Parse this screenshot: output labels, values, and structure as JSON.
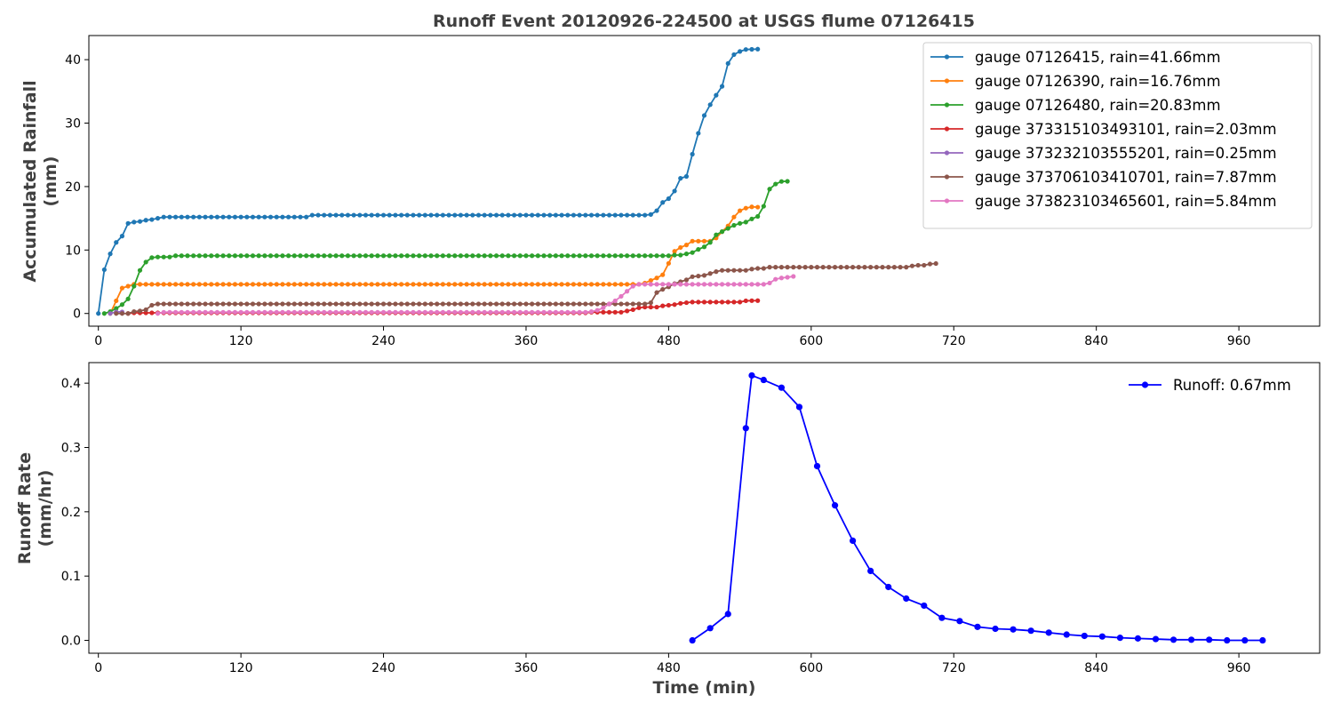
{
  "title": "Runoff Event 20120926-224500 at USGS flume 07126415",
  "chart_data": [
    {
      "type": "line",
      "ylabel": "Accumulated Rainfall\n(mm)",
      "xlabel": "",
      "xlim": [
        -8,
        1028
      ],
      "ylim": [
        -2,
        43.8
      ],
      "xticks": [
        0,
        120,
        240,
        360,
        480,
        600,
        720,
        840,
        960
      ],
      "yticks": [
        0,
        10,
        20,
        30,
        40
      ],
      "legend": "top-right",
      "series": [
        {
          "name": "gauge 07126415, rain=41.66mm",
          "color": "#1f77b4",
          "points": [
            [
              0,
              0
            ],
            [
              5,
              6.9
            ],
            [
              10,
              9.4
            ],
            [
              15,
              11.2
            ],
            [
              20,
              12.2
            ],
            [
              25,
              14.2
            ],
            [
              30,
              14.4
            ],
            [
              35,
              14.5
            ],
            [
              40,
              14.7
            ],
            [
              45,
              14.8
            ],
            [
              50,
              15.0
            ],
            [
              55,
              15.2
            ],
            [
              60,
              15.2
            ],
            [
              175,
              15.2
            ],
            [
              180,
              15.5
            ],
            [
              460,
              15.5
            ],
            [
              465,
              15.6
            ],
            [
              470,
              16.2
            ],
            [
              475,
              17.5
            ],
            [
              480,
              18.1
            ],
            [
              485,
              19.3
            ],
            [
              490,
              21.3
            ],
            [
              495,
              21.6
            ],
            [
              500,
              25.1
            ],
            [
              505,
              28.4
            ],
            [
              510,
              31.2
            ],
            [
              515,
              32.9
            ],
            [
              520,
              34.4
            ],
            [
              525,
              35.8
            ],
            [
              530,
              39.4
            ],
            [
              535,
              40.8
            ],
            [
              540,
              41.3
            ],
            [
              545,
              41.6
            ],
            [
              555,
              41.66
            ]
          ]
        },
        {
          "name": "gauge 07126390, rain=16.76mm",
          "color": "#ff7f0e",
          "points": [
            [
              10,
              0
            ],
            [
              15,
              2.0
            ],
            [
              20,
              4.0
            ],
            [
              25,
              4.3
            ],
            [
              30,
              4.6
            ],
            [
              455,
              4.6
            ],
            [
              460,
              4.8
            ],
            [
              465,
              5.2
            ],
            [
              470,
              5.6
            ],
            [
              475,
              6.1
            ],
            [
              480,
              7.9
            ],
            [
              485,
              9.8
            ],
            [
              490,
              10.4
            ],
            [
              495,
              10.8
            ],
            [
              500,
              11.4
            ],
            [
              515,
              11.4
            ],
            [
              520,
              11.9
            ],
            [
              525,
              12.9
            ],
            [
              530,
              13.8
            ],
            [
              535,
              15.2
            ],
            [
              540,
              16.2
            ],
            [
              545,
              16.6
            ],
            [
              550,
              16.8
            ],
            [
              555,
              16.76
            ]
          ]
        },
        {
          "name": "gauge 07126480, rain=20.83mm",
          "color": "#2ca02c",
          "points": [
            [
              5,
              0
            ],
            [
              10,
              0.3
            ],
            [
              15,
              0.8
            ],
            [
              20,
              1.4
            ],
            [
              25,
              2.3
            ],
            [
              30,
              4.3
            ],
            [
              35,
              6.8
            ],
            [
              40,
              8.1
            ],
            [
              45,
              8.8
            ],
            [
              50,
              8.9
            ],
            [
              60,
              8.9
            ],
            [
              65,
              9.1
            ],
            [
              480,
              9.1
            ],
            [
              485,
              9.2
            ],
            [
              490,
              9.2
            ],
            [
              495,
              9.4
            ],
            [
              500,
              9.6
            ],
            [
              505,
              10.1
            ],
            [
              510,
              10.5
            ],
            [
              515,
              11.2
            ],
            [
              520,
              12.4
            ],
            [
              525,
              12.9
            ],
            [
              530,
              13.4
            ],
            [
              535,
              13.9
            ],
            [
              540,
              14.2
            ],
            [
              545,
              14.4
            ],
            [
              550,
              14.9
            ],
            [
              555,
              15.3
            ],
            [
              560,
              16.9
            ],
            [
              565,
              19.6
            ],
            [
              570,
              20.4
            ],
            [
              575,
              20.8
            ],
            [
              580,
              20.83
            ]
          ]
        },
        {
          "name": "gauge 373315103493101, rain=2.03mm",
          "color": "#d62728",
          "points": [
            [
              25,
              0
            ],
            [
              30,
              0.1
            ],
            [
              410,
              0.1
            ],
            [
              415,
              0.2
            ],
            [
              440,
              0.2
            ],
            [
              445,
              0.4
            ],
            [
              450,
              0.6
            ],
            [
              455,
              0.9
            ],
            [
              460,
              1.0
            ],
            [
              465,
              1.0
            ],
            [
              470,
              1.0
            ],
            [
              475,
              1.2
            ],
            [
              480,
              1.3
            ],
            [
              485,
              1.4
            ],
            [
              490,
              1.6
            ],
            [
              495,
              1.7
            ],
            [
              500,
              1.8
            ],
            [
              540,
              1.8
            ],
            [
              545,
              2.0
            ],
            [
              555,
              2.03
            ]
          ]
        },
        {
          "name": "gauge 373232103555201, rain=0.25mm",
          "color": "#9467bd",
          "points": [
            [
              10,
              0
            ],
            [
              15,
              0.25
            ],
            [
              20,
              0.25
            ]
          ]
        },
        {
          "name": "gauge 373706103410701, rain=7.87mm",
          "color": "#8c564b",
          "points": [
            [
              15,
              0
            ],
            [
              25,
              0
            ],
            [
              30,
              0.3
            ],
            [
              35,
              0.4
            ],
            [
              40,
              0.6
            ],
            [
              45,
              1.3
            ],
            [
              50,
              1.5
            ],
            [
              460,
              1.5
            ],
            [
              465,
              1.7
            ],
            [
              470,
              3.3
            ],
            [
              475,
              3.8
            ],
            [
              480,
              4.2
            ],
            [
              485,
              4.7
            ],
            [
              490,
              5.0
            ],
            [
              495,
              5.3
            ],
            [
              500,
              5.8
            ],
            [
              510,
              6.0
            ],
            [
              515,
              6.3
            ],
            [
              520,
              6.6
            ],
            [
              525,
              6.8
            ],
            [
              545,
              6.8
            ],
            [
              550,
              7.0
            ],
            [
              555,
              7.1
            ],
            [
              560,
              7.1
            ],
            [
              565,
              7.3
            ],
            [
              680,
              7.3
            ],
            [
              685,
              7.5
            ],
            [
              690,
              7.6
            ],
            [
              695,
              7.6
            ],
            [
              700,
              7.8
            ],
            [
              705,
              7.87
            ]
          ]
        },
        {
          "name": "gauge 373823103465601, rain=5.84mm",
          "color": "#e377c2",
          "points": [
            [
              50,
              0
            ],
            [
              55,
              0.2
            ],
            [
              410,
              0.2
            ],
            [
              415,
              0.3
            ],
            [
              420,
              0.5
            ],
            [
              425,
              0.9
            ],
            [
              430,
              1.5
            ],
            [
              435,
              2.0
            ],
            [
              440,
              2.7
            ],
            [
              445,
              3.5
            ],
            [
              450,
              4.3
            ],
            [
              455,
              4.6
            ],
            [
              560,
              4.6
            ],
            [
              565,
              4.8
            ],
            [
              570,
              5.4
            ],
            [
              575,
              5.6
            ],
            [
              580,
              5.7
            ],
            [
              585,
              5.84
            ]
          ]
        }
      ]
    },
    {
      "type": "line",
      "ylabel": "Runoff Rate\n(mm/hr)",
      "xlabel": "Time (min)",
      "xlim": [
        -8,
        1028
      ],
      "ylim": [
        -0.02,
        0.432
      ],
      "xticks": [
        0,
        120,
        240,
        360,
        480,
        600,
        720,
        840,
        960
      ],
      "yticks": [
        0.0,
        0.1,
        0.2,
        0.3,
        0.4
      ],
      "ytick_labels": [
        "0.0",
        "0.1",
        "0.2",
        "0.3",
        "0.4"
      ],
      "legend": "top-right",
      "series": [
        {
          "name": "Runoff: 0.67mm",
          "color": "#0000ff",
          "points": [
            [
              500,
              0.0
            ],
            [
              515,
              0.019
            ],
            [
              530,
              0.041
            ],
            [
              545,
              0.33
            ],
            [
              550,
              0.412
            ],
            [
              560,
              0.405
            ],
            [
              575,
              0.393
            ],
            [
              590,
              0.363
            ],
            [
              605,
              0.271
            ],
            [
              620,
              0.21
            ],
            [
              635,
              0.155
            ],
            [
              650,
              0.108
            ],
            [
              665,
              0.083
            ],
            [
              680,
              0.065
            ],
            [
              695,
              0.054
            ],
            [
              710,
              0.035
            ],
            [
              725,
              0.03
            ],
            [
              740,
              0.021
            ],
            [
              755,
              0.018
            ],
            [
              770,
              0.017
            ],
            [
              785,
              0.015
            ],
            [
              800,
              0.012
            ],
            [
              815,
              0.009
            ],
            [
              830,
              0.007
            ],
            [
              845,
              0.006
            ],
            [
              860,
              0.004
            ],
            [
              875,
              0.003
            ],
            [
              890,
              0.002
            ],
            [
              905,
              0.001
            ],
            [
              920,
              0.001
            ],
            [
              935,
              0.001
            ],
            [
              950,
              0.0
            ],
            [
              965,
              0.0
            ],
            [
              980,
              0.0
            ]
          ]
        }
      ]
    }
  ]
}
